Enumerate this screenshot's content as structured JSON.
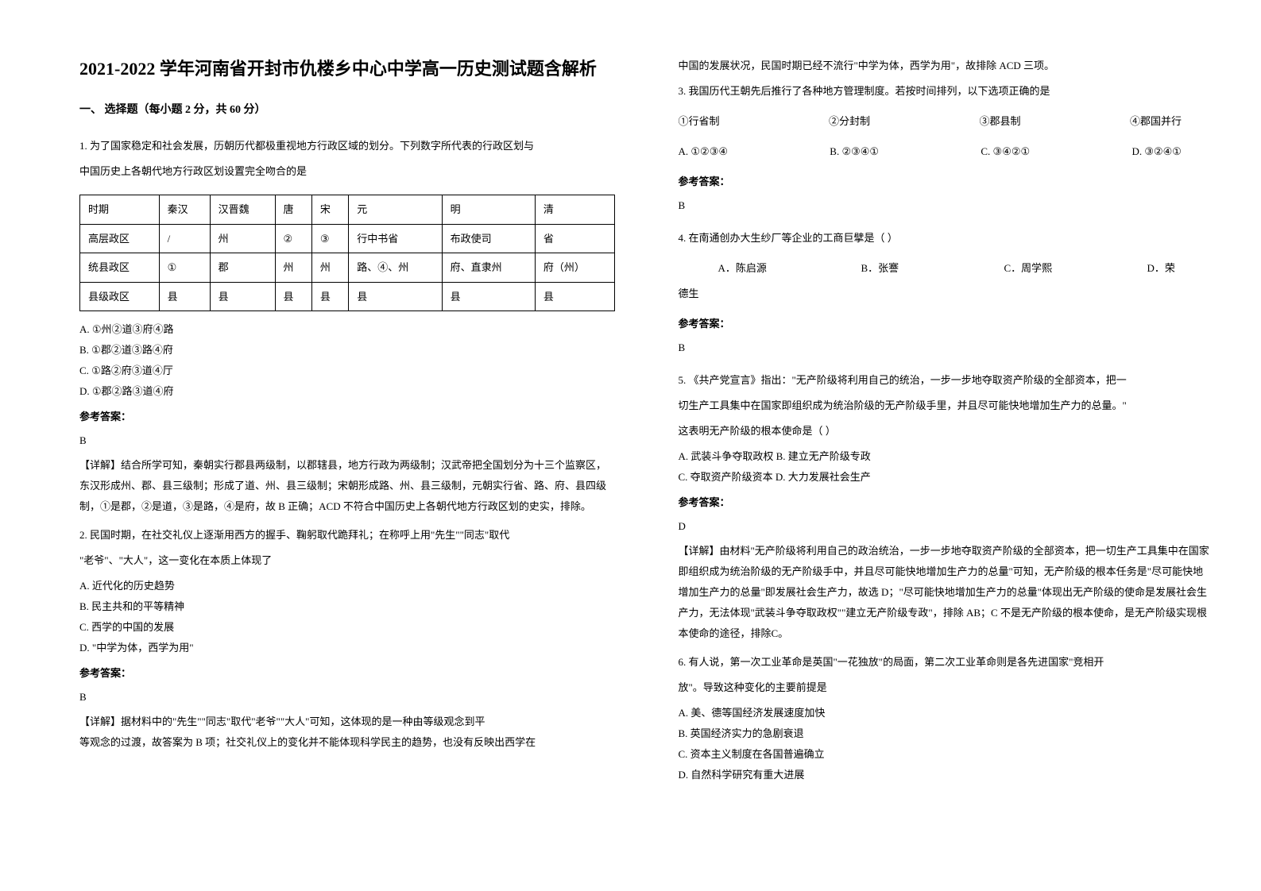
{
  "title": "2021-2022 学年河南省开封市仇楼乡中心中学高一历史测试题含解析",
  "section_heading": "一、 选择题（每小题 2 分，共 60 分）",
  "q1": {
    "stem1": "1. 为了国家稳定和社会发展，历朝历代都极重视地方行政区域的划分。下列数字所代表的行政区划与",
    "stem2": "中国历史上各朝代地方行政区划设置完全吻合的是",
    "table": {
      "header": [
        "时期",
        "秦汉",
        "汉晋魏",
        "唐",
        "宋",
        "元",
        "明",
        "清"
      ],
      "row1": [
        "高层政区",
        "/",
        "州",
        "②",
        "③",
        "行中书省",
        "布政使司",
        "省"
      ],
      "row2": [
        "统县政区",
        "①",
        "郡",
        "州",
        "州",
        "路、④、州",
        "府、直隶州",
        "府（州）"
      ],
      "row3": [
        "县级政区",
        "县",
        "县",
        "县",
        "县",
        "县",
        "县",
        "县"
      ]
    },
    "opt_a": "A. ①州②道③府④路",
    "opt_b": "B. ①郡②道③路④府",
    "opt_c": "C. ①路②府③道④厅",
    "opt_d": "D. ①郡②路③道④府",
    "answer_label": "参考答案：",
    "answer": "B",
    "explain": "【详解】结合所学可知，秦朝实行郡县两级制，以郡辖县，地方行政为两级制；汉武帝把全国划分为十三个监察区，东汉形成州、郡、县三级制；形成了道、州、县三级制；宋朝形成路、州、县三级制，元朝实行省、路、府、县四级制，①是郡，②是道，③是路，④是府，故 B 正确；ACD 不符合中国历史上各朝代地方行政区划的史实，排除。"
  },
  "q2": {
    "stem1": "2. 民国时期，在社交礼仪上逐渐用西方的握手、鞠躬取代跪拜礼；在称呼上用\"先生\"\"同志\"取代",
    "stem2": "\"老爷\"、\"大人\"，这一变化在本质上体现了",
    "opt_a": "A. 近代化的历史趋势",
    "opt_b": "B. 民主共和的平等精神",
    "opt_c": "C. 西学的中国的发展",
    "opt_d": "D. \"中学为体，西学为用\"",
    "answer_label": "参考答案：",
    "answer": "B",
    "explain1": "【详解】据材料中的\"先生\"\"同志\"取代\"老爷\"\"大人\"可知，这体现的是一种由等级观念到平",
    "explain2": "等观念的过渡，故答案为 B 项；社交礼仪上的变化并不能体现科学民主的趋势，也没有反映出西学在"
  },
  "col2_cont1": "中国的发展状况，民国时期已经不流行\"中学为体，西学为用\"，故排除 ACD 三项。",
  "q3": {
    "stem": "3. 我国历代王朝先后推行了各种地方管理制度。若按时间排列，以下选项正确的是",
    "line_opts": [
      "①行省制",
      "②分封制",
      "③郡县制",
      "④郡国并行"
    ],
    "opts": [
      "A. ①②③④",
      "B. ②③④①",
      "C. ③④②①",
      "D. ③②④①"
    ],
    "answer_label": "参考答案：",
    "answer": "B"
  },
  "q4": {
    "stem": "4. 在南通创办大生纱厂等企业的工商巨擘是（   ）",
    "opts": [
      "A．陈启源",
      "B．张謇",
      "C．周学熙",
      "D．荣"
    ],
    "cont": "德生",
    "answer_label": "参考答案：",
    "answer": "B"
  },
  "q5": {
    "stem1": "5. 《共产党宣言》指出：\"无产阶级将利用自己的统治，一步一步地夺取资产阶级的全部资本，把一",
    "stem2": "切生产工具集中在国家即组织成为统治阶级的无产阶级手里，并且尽可能快地增加生产力的总量。\"",
    "stem3": "这表明无产阶级的根本使命是（     ）",
    "opt_ab": "A. 武装斗争夺取政权 B. 建立无产阶级专政",
    "opt_cd": "C. 夺取资产阶级资本 D. 大力发展社会生产",
    "answer_label": "参考答案：",
    "answer": "D",
    "explain": "【详解】由材料\"无产阶级将利用自己的政治统治，一步一步地夺取资产阶级的全部资本，把一切生产工具集中在国家即组织成为统治阶级的无产阶级手中，并且尽可能快地增加生产力的总量\"可知，无产阶级的根本任务是\"尽可能快地增加生产力的总量\"即发展社会生产力，故选 D；\"尽可能快地增加生产力的总量\"体现出无产阶级的使命是发展社会生产力，无法体现\"武装斗争夺取政权\"\"建立无产阶级专政\"，排除 AB；C 不是无产阶级的根本使命，是无产阶级实现根本使命的途径，排除C。"
  },
  "q6": {
    "stem1": "6. 有人说，第一次工业革命是英国\"一花独放\"的局面，第二次工业革命则是各先进国家\"竞相开",
    "stem2": "放\"。导致这种变化的主要前提是",
    "opt_a": "A. 美、德等国经济发展速度加快",
    "opt_b": "B. 英国经济实力的急剧衰退",
    "opt_c": "C. 资本主义制度在各国普遍确立",
    "opt_d": "D. 自然科学研究有重大进展"
  }
}
